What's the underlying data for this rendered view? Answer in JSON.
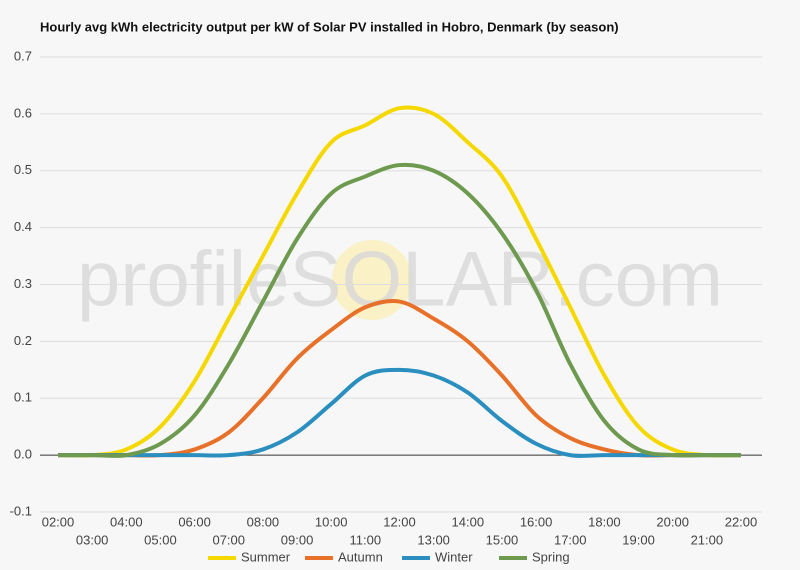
{
  "chart_data": {
    "type": "line",
    "title": "Hourly avg kWh electricity output per kW of Solar PV installed in Hobro, Denmark (by season)",
    "watermark": "profileSOLAR.com",
    "categories": [
      "02:00",
      "03:00",
      "04:00",
      "05:00",
      "06:00",
      "07:00",
      "08:00",
      "09:00",
      "10:00",
      "11:00",
      "12:00",
      "13:00",
      "14:00",
      "15:00",
      "16:00",
      "17:00",
      "18:00",
      "19:00",
      "20:00",
      "21:00",
      "22:00"
    ],
    "series": [
      {
        "name": "Summer",
        "color": "#f5d800",
        "values": [
          0,
          0,
          0.01,
          0.05,
          0.13,
          0.24,
          0.35,
          0.46,
          0.55,
          0.58,
          0.61,
          0.6,
          0.55,
          0.49,
          0.38,
          0.26,
          0.14,
          0.05,
          0.01,
          0,
          0
        ]
      },
      {
        "name": "Autumn",
        "color": "#e8712a",
        "values": [
          0,
          0,
          0,
          0,
          0.01,
          0.04,
          0.1,
          0.17,
          0.22,
          0.26,
          0.27,
          0.24,
          0.2,
          0.14,
          0.07,
          0.03,
          0.01,
          0,
          0,
          0,
          0
        ]
      },
      {
        "name": "Winter",
        "color": "#2a8fbf",
        "values": [
          0,
          0,
          0,
          0,
          0,
          0,
          0.01,
          0.04,
          0.09,
          0.14,
          0.15,
          0.14,
          0.11,
          0.06,
          0.02,
          0,
          0,
          0,
          0,
          0,
          0
        ]
      },
      {
        "name": "Spring",
        "color": "#6e9a50",
        "values": [
          0,
          0,
          0,
          0.02,
          0.07,
          0.16,
          0.27,
          0.38,
          0.46,
          0.49,
          0.51,
          0.5,
          0.46,
          0.39,
          0.29,
          0.16,
          0.06,
          0.01,
          0,
          0,
          0
        ]
      }
    ],
    "ylim": [
      -0.1,
      0.7
    ],
    "yticks": [
      -0.1,
      {
        "value": 0,
        "label": "0.0"
      },
      0.1,
      0.2,
      0.3,
      0.4,
      0.5,
      0.6,
      0.7
    ],
    "grid": true,
    "legend": "bottom"
  }
}
